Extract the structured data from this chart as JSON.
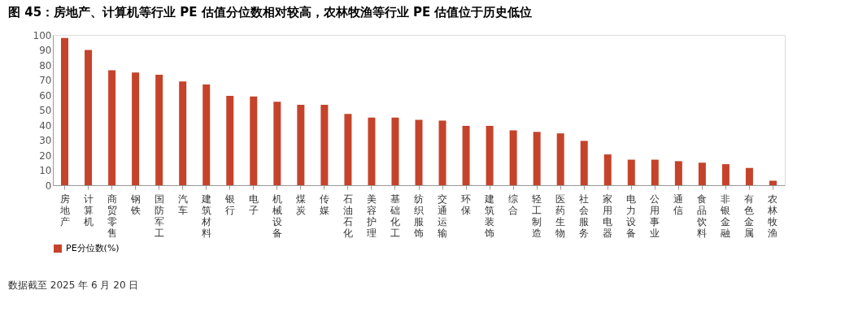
{
  "chart_data": {
    "type": "bar",
    "title": "图 45：房地产、计算机等行业 PE 估值分位数相对较高，农林牧渔等行业 PE 估值位于历史低位",
    "categories": [
      "房地产",
      "计算机",
      "商贸零售",
      "钢铁",
      "国防军工",
      "汽车",
      "建筑材料",
      "银行",
      "电子",
      "机械设备",
      "煤炭",
      "传媒",
      "石油石化",
      "美容护理",
      "基础化工",
      "纺织服饰",
      "交通运输",
      "环保",
      "建筑装饰",
      "综合",
      "轻工制造",
      "医药生物",
      "社会服务",
      "家用电器",
      "电力设备",
      "公用事业",
      "通信",
      "食品饮料",
      "非银金融",
      "有色金属",
      "农林牧渔"
    ],
    "series": [
      {
        "name": "PE分位数(%)",
        "color": "#c5432a",
        "values": [
          98,
          90,
          76.5,
          75,
          73.5,
          69,
          67,
          59.5,
          59,
          55.5,
          53.5,
          53.5,
          47.5,
          45,
          45,
          43.5,
          43,
          39.5,
          39.5,
          36.5,
          35.5,
          34.5,
          29.5,
          20.5,
          17,
          17,
          16,
          15,
          14,
          11.5,
          3
        ]
      }
    ],
    "ylim": [
      0,
      100
    ],
    "yticks": [
      0,
      10,
      20,
      30,
      40,
      50,
      60,
      70,
      80,
      90,
      100
    ],
    "grid": false,
    "legend": "bottom",
    "annotations": [
      "数据截至 2025 年 6 月 20 日"
    ]
  }
}
